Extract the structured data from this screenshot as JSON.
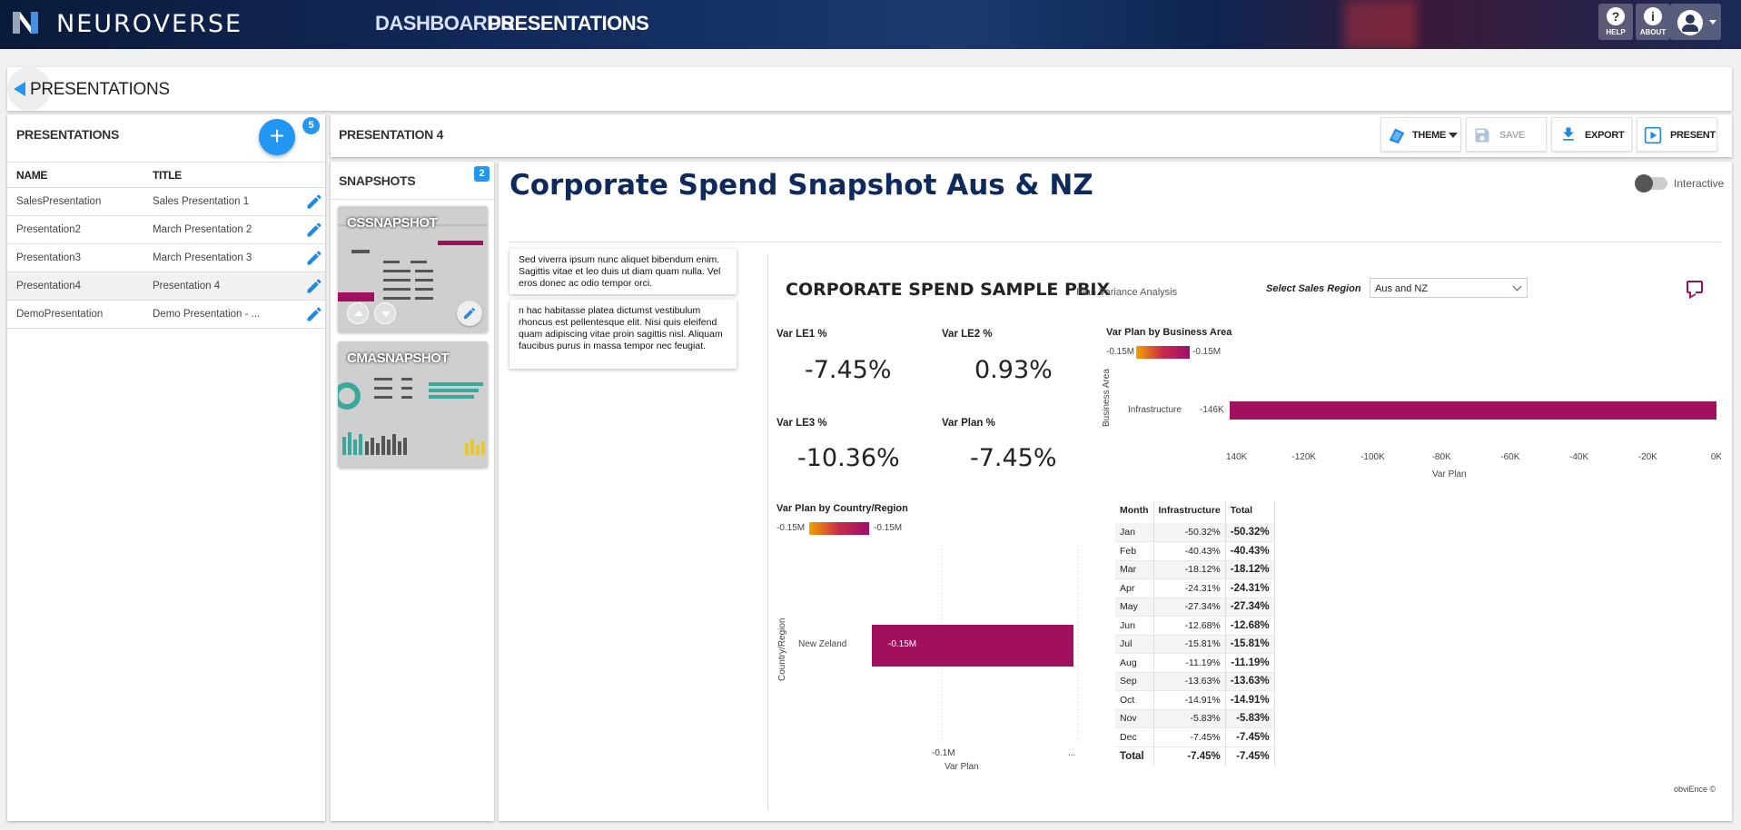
{
  "app": {
    "brand": "NEUROVERSE",
    "nav": [
      {
        "label": "DASHBOARDS"
      },
      {
        "label": "PRESENTATIONS"
      }
    ],
    "help_label": "HELP",
    "about_label": "ABOUT"
  },
  "page": {
    "title": "PRESENTATIONS"
  },
  "presentations_panel": {
    "title": "PRESENTATIONS",
    "count": "5",
    "add_icon": "+",
    "columns": [
      "NAME",
      "TITLE"
    ],
    "rows": [
      {
        "name": "SalesPresentation",
        "title": "Sales Presentation 1"
      },
      {
        "name": "Presentation2",
        "title": "March Presentation 2"
      },
      {
        "name": "Presentation3",
        "title": "March Presentation 3"
      },
      {
        "name": "Presentation4",
        "title": "Presentation 4"
      },
      {
        "name": "DemoPresentation",
        "title": "Demo Presentation - ..."
      }
    ]
  },
  "editor": {
    "title": "PRESENTATION 4",
    "toolbar": {
      "theme": "THEME",
      "save": "SAVE",
      "export": "EXPORT",
      "present": "PRESENT"
    }
  },
  "snapshots": {
    "title": "SNAPSHOTS",
    "count": "2",
    "items": [
      {
        "label": "CSSNAPSHOT"
      },
      {
        "label": "CMASNAPSHOT"
      }
    ]
  },
  "slide": {
    "title": "Corporate Spend Snapshot Aus & NZ",
    "interactive_label": "Interactive",
    "notes": [
      "Sed viverra ipsum nunc aliquet bibendum enim. Sagittis vitae et leo duis ut diam quam nulla. Vel eros donec ac odio tempor orci.",
      "n hac habitasse platea dictumst vestibulum rhoncus est pellentesque elit. Nisi quis eleifend quam adipiscing vitae proin sagittis nisl. Aliquam faucibus purus in massa tempor nec feugiat."
    ]
  },
  "report": {
    "title": "CORPORATE SPEND SAMPLE PBIX",
    "subtitle": "Plan Variance Analysis",
    "region_label": "Select Sales Region",
    "region_value": "Aus and NZ",
    "kpis": [
      {
        "label": "Var LE1 %",
        "value": "-7.45%"
      },
      {
        "label": "Var LE2 %",
        "value": "0.93%"
      },
      {
        "label": "Var LE3 %",
        "value": "-10.36%"
      },
      {
        "label": "Var Plan %",
        "value": "-7.45%"
      }
    ],
    "footer": "obviEnce ©"
  },
  "chart_data": [
    {
      "type": "bar",
      "title": "Var Plan by Business Area",
      "legend_min": "-0.15M",
      "legend_max": "-0.15M",
      "orientation": "horizontal",
      "categories": [
        "Infrastructure"
      ],
      "values": [
        -146
      ],
      "data_labels": [
        "-146K"
      ],
      "xlabel": "Var Plan",
      "ylabel": "Business Area",
      "xlim": [
        -140,
        0
      ],
      "xticks": [
        "-140K",
        "-120K",
        "-100K",
        "-80K",
        "-60K",
        "-40K",
        "-20K",
        "0K"
      ],
      "color": "#a0105c"
    },
    {
      "type": "bar",
      "title": "Var Plan by Country/Region",
      "legend_min": "-0.15M",
      "legend_max": "-0.15M",
      "orientation": "horizontal",
      "categories": [
        "New Zeland"
      ],
      "values": [
        -0.15
      ],
      "data_labels": [
        "-0.15M"
      ],
      "xlabel": "Var Plan",
      "ylabel": "Country/Region",
      "xticks": [
        "-0.1M",
        "..."
      ],
      "color": "#a0105c"
    },
    {
      "type": "table",
      "columns": [
        "Month",
        "Infrastructure",
        "Total"
      ],
      "rows": [
        [
          "Jan",
          "-50.32%",
          "-50.32%"
        ],
        [
          "Feb",
          "-40.43%",
          "-40.43%"
        ],
        [
          "Mar",
          "-18.12%",
          "-18.12%"
        ],
        [
          "Apr",
          "-24.31%",
          "-24.31%"
        ],
        [
          "May",
          "-27.34%",
          "-27.34%"
        ],
        [
          "Jun",
          "-12.68%",
          "-12.68%"
        ],
        [
          "Jul",
          "-15.81%",
          "-15.81%"
        ],
        [
          "Aug",
          "-11.19%",
          "-11.19%"
        ],
        [
          "Sep",
          "-13.63%",
          "-13.63%"
        ],
        [
          "Oct",
          "-14.91%",
          "-14.91%"
        ],
        [
          "Nov",
          "-5.83%",
          "-5.83%"
        ],
        [
          "Dec",
          "-7.45%",
          "-7.45%"
        ]
      ],
      "total": [
        "Total",
        "-7.45%",
        "-7.45%"
      ]
    }
  ]
}
